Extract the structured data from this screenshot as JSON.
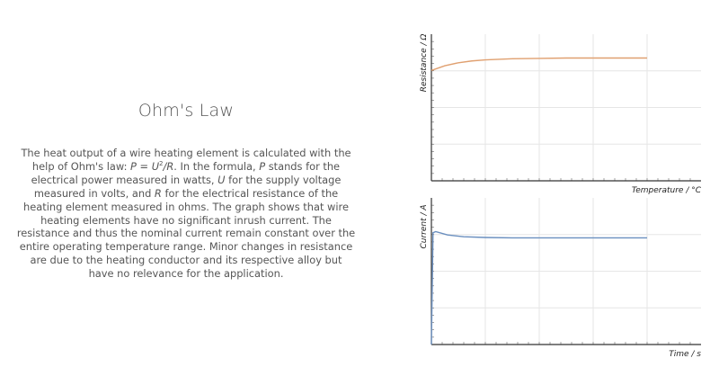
{
  "page": {
    "title": "Ohm's Law",
    "paragraph": {
      "p1": "The heat output of a wire heating element is calculated with the help of Ohm's law: ",
      "formula_p": "P",
      "formula_eq": " = ",
      "formula_u": "U",
      "formula_exp": "2",
      "formula_div": "/",
      "formula_r": "R",
      "p2": ". In the formula, ",
      "var_p": "P",
      "p3": " stands for the electrical power measured in watts, ",
      "var_u": "U",
      "p4": " for the supply voltage measured in volts, and ",
      "var_r": "R",
      "p5": " for the electrical resistance of the heating element measured in ohms. The graph shows that wire heating elements have no significant inrush current. The resistance and thus the nominal current remain constant over the entire operating temperature range. Minor changes in resistance are due to the heating conductor and its respective alloy but have no relevance for the application."
    }
  },
  "chart_data": [
    {
      "type": "line",
      "title": "",
      "xlabel": "Temperature / °C",
      "ylabel": "Resistance / Ω",
      "xlim": [
        0,
        5
      ],
      "ylim": [
        0,
        4
      ],
      "grid": true,
      "series": [
        {
          "name": "Resistance",
          "color": "#e0a070",
          "x": [
            0,
            0.25,
            0.5,
            0.75,
            1.0,
            1.5,
            2.0,
            2.5,
            3.0,
            3.5,
            4.0
          ],
          "y": [
            3.01,
            3.14,
            3.22,
            3.27,
            3.3,
            3.33,
            3.34,
            3.35,
            3.35,
            3.35,
            3.35
          ]
        }
      ]
    },
    {
      "type": "line",
      "title": "",
      "xlabel": "Time / s",
      "ylabel": "Current / A",
      "xlim": [
        0,
        5
      ],
      "ylim": [
        0,
        4
      ],
      "grid": true,
      "series": [
        {
          "name": "Current",
          "color": "#6a8fbf",
          "x": [
            0,
            0.03,
            0.08,
            0.3,
            0.6,
            1.0,
            1.5,
            2.0,
            3.0,
            4.0
          ],
          "y": [
            0,
            3.05,
            3.08,
            2.99,
            2.94,
            2.92,
            2.91,
            2.91,
            2.91,
            2.91
          ]
        }
      ]
    }
  ]
}
